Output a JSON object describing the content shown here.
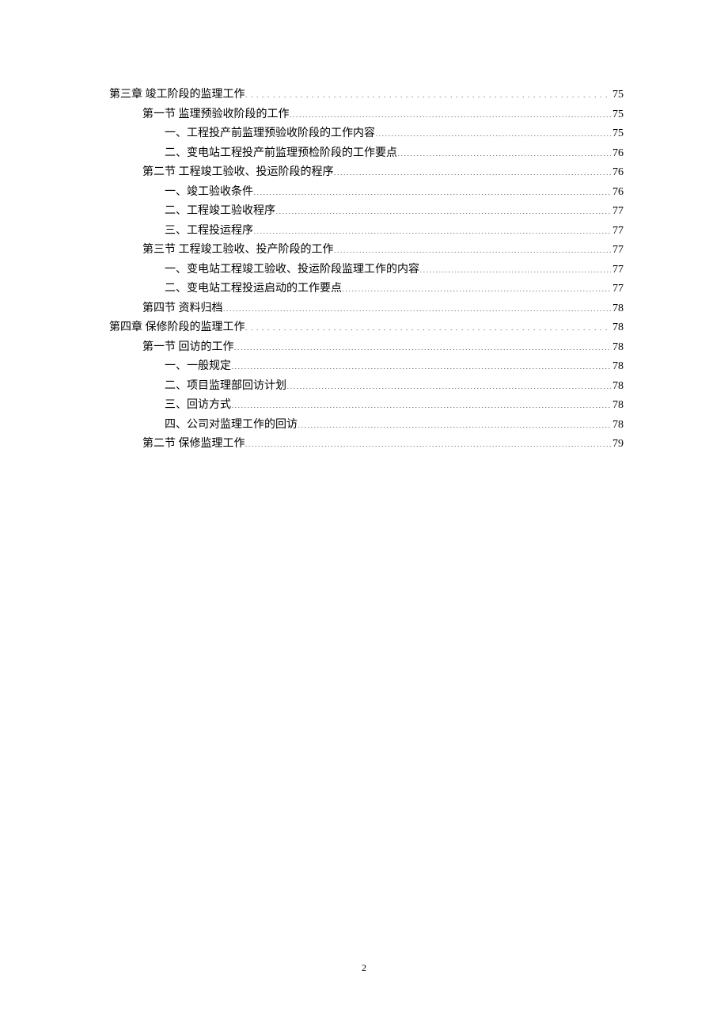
{
  "entries": [
    {
      "indent": 0,
      "label": "第三章 竣工阶段的监理工作",
      "page": "75",
      "dotStyle": "wide"
    },
    {
      "indent": 1,
      "label": "第一节 监理预验收阶段的工作",
      "page": "75",
      "dotStyle": "tight"
    },
    {
      "indent": 2,
      "label": "一、工程投产前监理预验收阶段的工作内容",
      "page": "75",
      "dotStyle": "tight"
    },
    {
      "indent": 2,
      "label": "二、变电站工程投产前监理预检阶段的工作要点",
      "page": "76",
      "dotStyle": "tight"
    },
    {
      "indent": 1,
      "label": "第二节 工程竣工验收、投运阶段的程序",
      "page": "76",
      "dotStyle": "tight"
    },
    {
      "indent": 2,
      "label": "一、竣工验收条件",
      "page": "76",
      "dotStyle": "tight"
    },
    {
      "indent": 2,
      "label": "二、工程竣工验收程序",
      "page": "77",
      "dotStyle": "tight"
    },
    {
      "indent": 2,
      "label": "三、工程投运程序",
      "page": "77",
      "dotStyle": "tight"
    },
    {
      "indent": 1,
      "label": "第三节 工程竣工验收、投产阶段的工作",
      "page": "77",
      "dotStyle": "tight"
    },
    {
      "indent": 2,
      "label": "一、变电站工程竣工验收、投运阶段监理工作的内容",
      "page": "77",
      "dotStyle": "tight"
    },
    {
      "indent": 2,
      "label": "二、变电站工程投运启动的工作要点",
      "page": "77",
      "dotStyle": "tight"
    },
    {
      "indent": 1,
      "label": "第四节   资料归档",
      "page": "78",
      "dotStyle": "tight"
    },
    {
      "indent": 0,
      "label": "第四章 保修阶段的监理工作",
      "page": "78",
      "dotStyle": "wide"
    },
    {
      "indent": 1,
      "label": "第一节   回访的工作",
      "page": "78",
      "dotStyle": "tight"
    },
    {
      "indent": 2,
      "label": "一、一般规定",
      "page": "78",
      "dotStyle": "tight"
    },
    {
      "indent": 2,
      "label": "二、项目监理部回访计划",
      "page": "78",
      "dotStyle": "tight"
    },
    {
      "indent": 2,
      "label": "三、回访方式",
      "page": "78",
      "dotStyle": "tight"
    },
    {
      "indent": 2,
      "label": "四、公司对监理工作的回访",
      "page": "78",
      "dotStyle": "tight"
    },
    {
      "indent": 1,
      "label": "第二节   保修监理工作",
      "page": "79",
      "dotStyle": "tight"
    }
  ],
  "pageNumber": "2",
  "colors": {
    "background": "#ffffff",
    "text": "#000000"
  },
  "typography": {
    "body_font": "SimSun",
    "body_fontsize": 14,
    "line_height": 24.5,
    "page_number_fontsize": 12
  }
}
